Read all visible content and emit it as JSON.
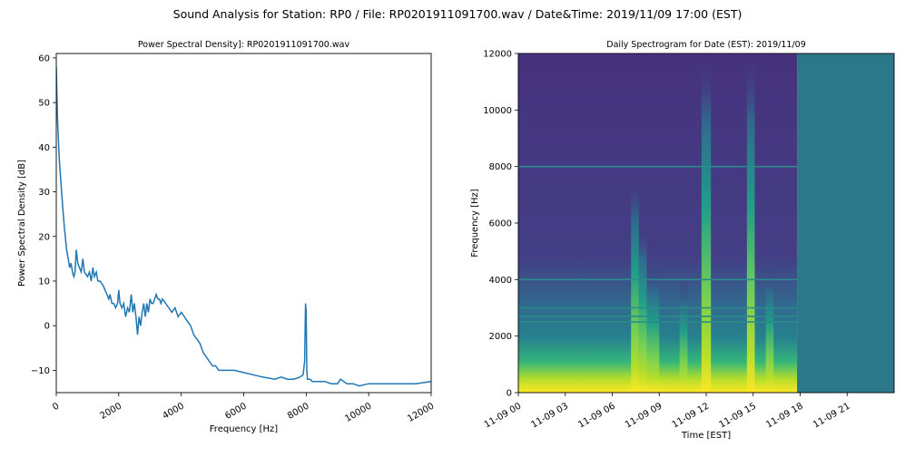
{
  "suptitle": "Sound Analysis for Station: RP0 / File: RP0201911091700.wav / Date&Time: 2019/11/09 17:00 (EST)",
  "chart_data": [
    {
      "type": "line",
      "title": "Power Spectral Density]: RP0201911091700.wav",
      "xlabel": "Frequency [Hz]",
      "ylabel": "Power Spectral Density [dB]",
      "xlim": [
        0,
        12000
      ],
      "ylim": [
        -15,
        61
      ],
      "xticks": [
        0,
        2000,
        4000,
        6000,
        8000,
        10000,
        12000
      ],
      "xtick_labels": [
        "0",
        "2000",
        "4000",
        "6000",
        "8000",
        "10000",
        "12000"
      ],
      "yticks": [
        -10,
        0,
        10,
        20,
        30,
        40,
        50,
        60
      ],
      "ytick_labels": [
        "−10",
        "0",
        "10",
        "20",
        "30",
        "40",
        "50",
        "60"
      ],
      "line_color": "#1f77b4",
      "grid": false,
      "x": [
        0,
        40,
        100,
        180,
        260,
        330,
        380,
        430,
        470,
        520,
        560,
        600,
        640,
        690,
        740,
        800,
        850,
        900,
        1000,
        1060,
        1120,
        1170,
        1220,
        1280,
        1330,
        1400,
        1500,
        1560,
        1620,
        1680,
        1720,
        1780,
        1840,
        1900,
        1960,
        2000,
        2040,
        2100,
        2160,
        2220,
        2280,
        2340,
        2400,
        2450,
        2500,
        2550,
        2600,
        2650,
        2700,
        2750,
        2800,
        2850,
        2900,
        2950,
        3000,
        3050,
        3100,
        3150,
        3200,
        3250,
        3300,
        3350,
        3400,
        3500,
        3600,
        3700,
        3800,
        3900,
        4000,
        4100,
        4200,
        4300,
        4400,
        4500,
        4600,
        4700,
        4800,
        4900,
        5000,
        5100,
        5200,
        5300,
        5500,
        5700,
        6000,
        6300,
        6600,
        7000,
        7200,
        7400,
        7600,
        7800,
        7900,
        7950,
        7980,
        8000,
        8020,
        8040,
        8070,
        8120,
        8200,
        8400,
        8600,
        8800,
        9000,
        9100,
        9300,
        9500,
        9700,
        10000,
        10500,
        11000,
        11500,
        12000
      ],
      "y": [
        58,
        46,
        37,
        29,
        22,
        17,
        15,
        13,
        14,
        12,
        11,
        12,
        17,
        14,
        13,
        12,
        15,
        12,
        11,
        12,
        10,
        13,
        11,
        12,
        10,
        10,
        9,
        8,
        7,
        6,
        7,
        5,
        5,
        4,
        5,
        8,
        5,
        4,
        5,
        2,
        4,
        3,
        7,
        3,
        5,
        2,
        -2,
        2,
        0,
        3,
        5,
        2,
        5,
        3,
        6,
        5,
        5,
        6,
        7,
        6,
        6,
        5,
        6,
        5,
        4,
        3,
        4,
        2,
        3,
        2,
        1,
        0,
        -2,
        -3,
        -4,
        -6,
        -7,
        -8,
        -9,
        -9,
        -10,
        -10,
        -10,
        -10,
        -10.5,
        -11,
        -11.5,
        -12,
        -11.5,
        -12,
        -12,
        -11.5,
        -11,
        -8,
        5,
        3,
        -10,
        -12,
        -12,
        -12,
        -12.5,
        -12.5,
        -12.5,
        -13,
        -13,
        -12,
        -13,
        -13,
        -13.5,
        -13,
        -13,
        -13,
        -13,
        -12.5
      ]
    },
    {
      "type": "heatmap",
      "title": "Daily Spectrogram for Date (EST): 2019/11/09",
      "xlabel": "Time [EST]",
      "ylabel": "Frequency [Hz]",
      "ylim": [
        0,
        12000
      ],
      "xlim_hours": [
        0,
        24
      ],
      "xticks_hours": [
        0,
        3,
        6,
        9,
        12,
        15,
        18,
        21
      ],
      "xtick_labels": [
        "11-09 00",
        "11-09 03",
        "11-09 06",
        "11-09 09",
        "11-09 12",
        "11-09 15",
        "11-09 18",
        "11-09 21"
      ],
      "yticks": [
        0,
        2000,
        4000,
        6000,
        8000,
        10000,
        12000
      ],
      "ytick_labels": [
        "0",
        "2000",
        "4000",
        "6000",
        "8000",
        "10000",
        "12000"
      ],
      "colormap": "viridis",
      "data_end_hour": 17.8,
      "no_data_color": "#2b788a",
      "background_color": "#46327e",
      "tonal_lines_hz": [
        8000,
        4000,
        3000,
        2700,
        2500
      ],
      "broadband_events": [
        {
          "start_hour": 7.2,
          "end_hour": 7.7,
          "max_freq_hz": 7700
        },
        {
          "start_hour": 7.7,
          "end_hour": 8.2,
          "max_freq_hz": 6000
        },
        {
          "start_hour": 8.2,
          "end_hour": 9.0,
          "max_freq_hz": 4500
        },
        {
          "start_hour": 10.3,
          "end_hour": 10.8,
          "max_freq_hz": 4000
        },
        {
          "start_hour": 11.7,
          "end_hour": 12.3,
          "max_freq_hz": 12000
        },
        {
          "start_hour": 14.6,
          "end_hour": 15.1,
          "max_freq_hz": 12000
        },
        {
          "start_hour": 15.8,
          "end_hour": 16.3,
          "max_freq_hz": 4500
        }
      ]
    }
  ]
}
